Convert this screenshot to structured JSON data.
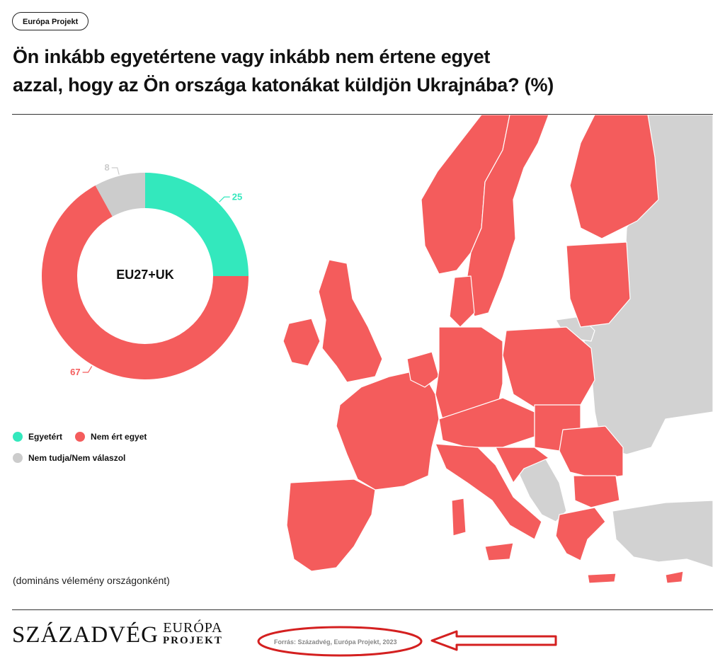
{
  "badge": "Európa Projekt",
  "title_line1": "Ön inkább egyetértene vagy inkább nem értene egyet",
  "title_line2": "azzal, hogy az Ön országa katonákat küldjön Ukrajnába? (%)",
  "note": "(domináns vélemény országonként)",
  "logos": {
    "szazadveg": "SZÁZADVÉG",
    "europa_line1": "EURÓPA",
    "europa_line2": "PROJEKT"
  },
  "source": "Forrás: Századvég, Európa Projekt, 2023",
  "colors": {
    "agree": "#33e8bd",
    "disagree": "#f45c5c",
    "dontknow": "#cccccc",
    "annotation": "#d42020"
  },
  "chart_data": {
    "type": "pie",
    "center_label": "EU27+UK",
    "slices": [
      {
        "name": "Egyetért",
        "value": 25,
        "label": "25",
        "color": "#33e8bd"
      },
      {
        "name": "Nem ért egyet",
        "value": 67,
        "label": "67",
        "color": "#f45c5c"
      },
      {
        "name": "Nem tudja/Nem válaszol",
        "value": 8,
        "label": "8",
        "color": "#cccccc"
      }
    ],
    "legend": [
      "Egyetért",
      "Nem ért egyet",
      "Nem tudja/Nem válaszol"
    ],
    "map_legend": "dominant opinion per country: all EU27+UK countries shown in red (Nem ért egyet); non-EU countries in grey"
  }
}
